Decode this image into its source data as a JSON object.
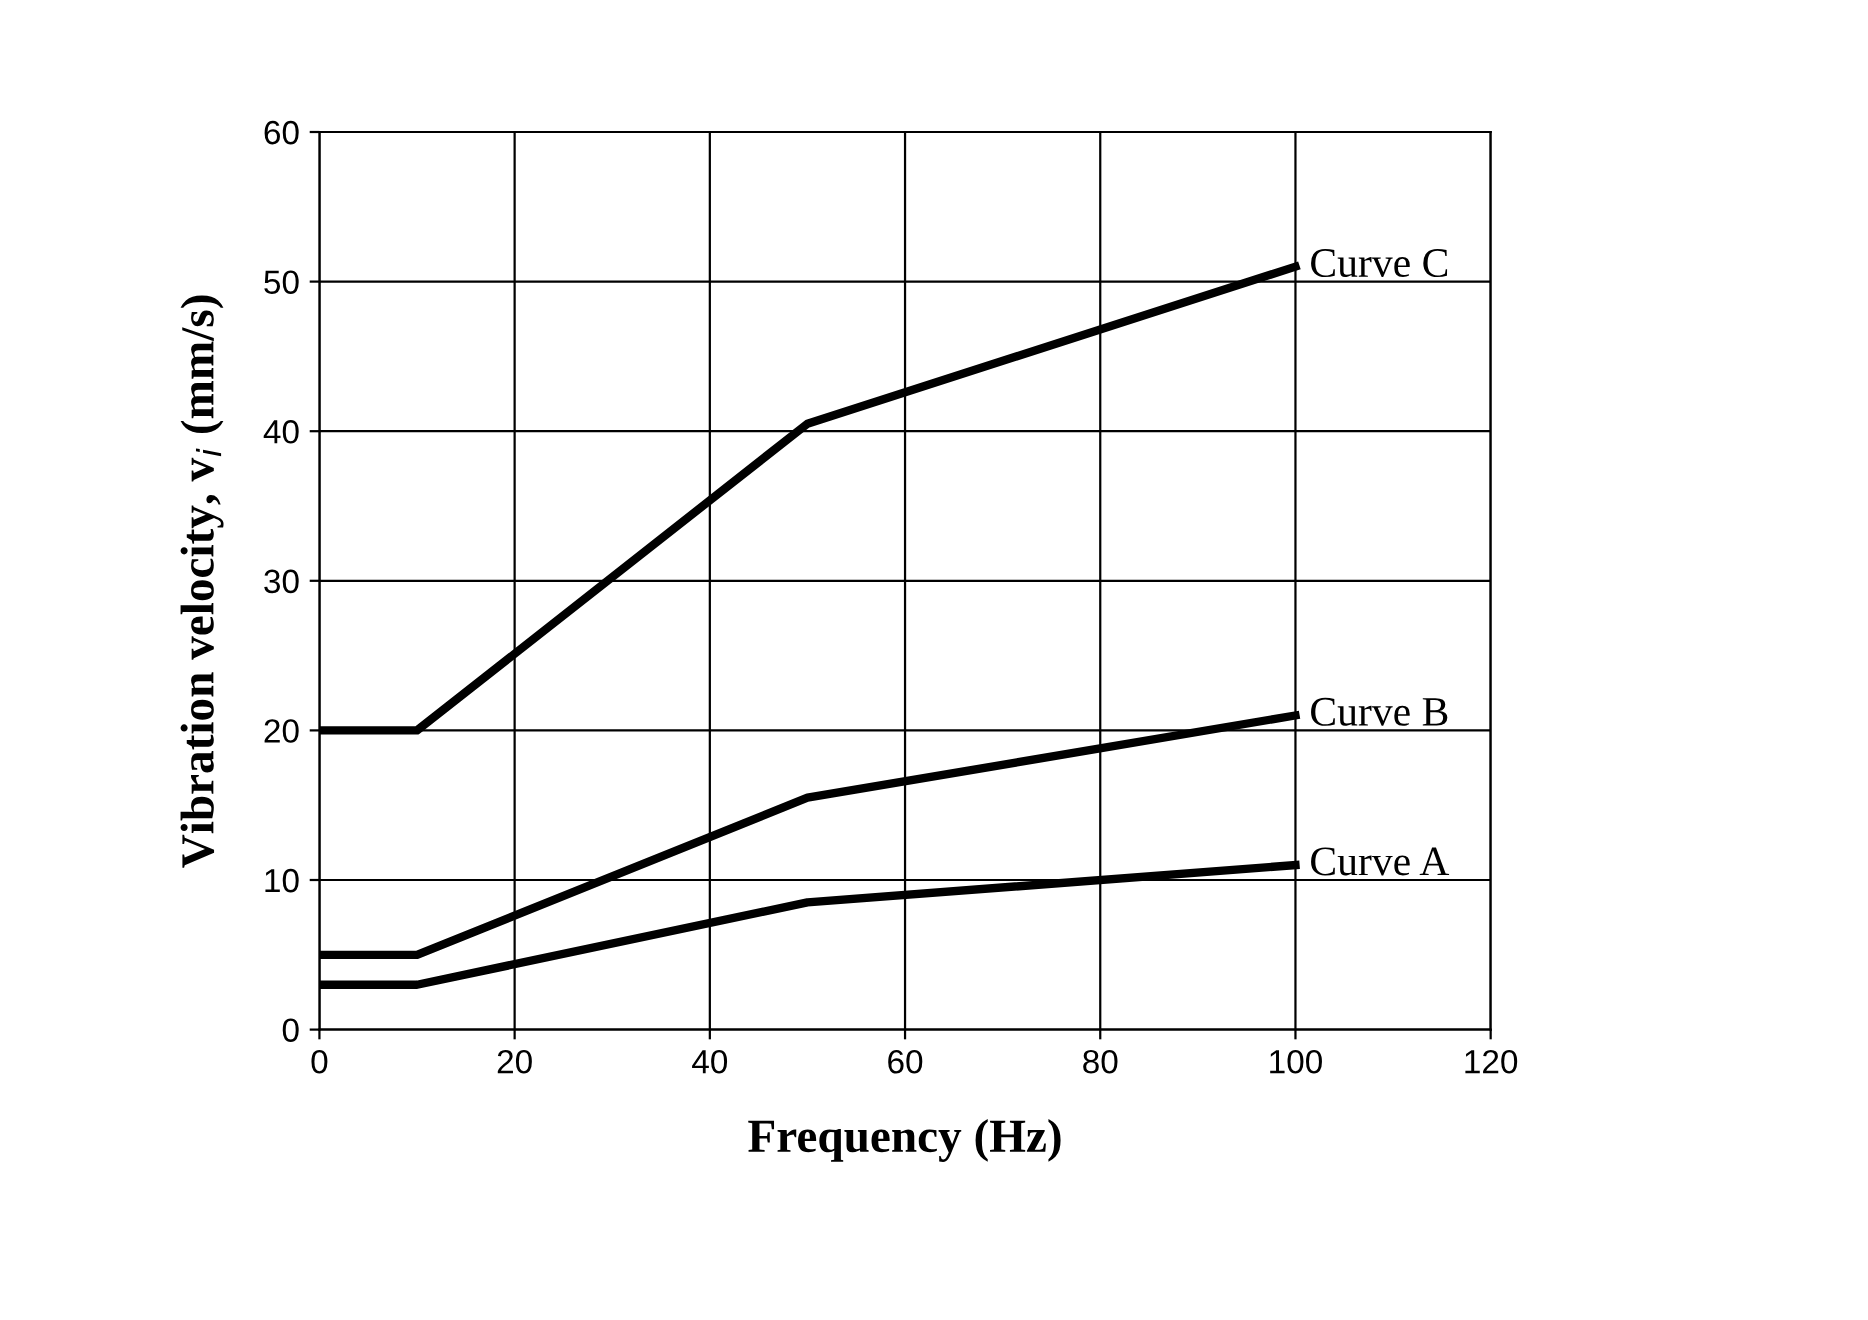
{
  "chart_data": {
    "type": "line",
    "x": [
      0,
      10,
      50,
      100
    ],
    "xlabel": "Frequency (Hz)",
    "ylabel": "Vibration velocity, v$_{i}$ (mm/s)",
    "series": [
      {
        "name": "Curve C",
        "color": "#000000",
        "values": [
          20,
          20,
          40.5,
          51
        ]
      },
      {
        "name": "Curve B",
        "color": "#000000",
        "values": [
          5,
          5,
          15.5,
          21
        ]
      },
      {
        "name": "Curve A",
        "color": "#000000",
        "values": [
          3,
          3,
          8.5,
          11
        ]
      }
    ],
    "xlim": [
      0,
      120
    ],
    "xticks": [
      0,
      20,
      40,
      60,
      80,
      100,
      120
    ],
    "ylim": [
      0,
      60
    ],
    "yticks": [
      0,
      10,
      20,
      30,
      40,
      50,
      60
    ],
    "grid": true,
    "marker": "none",
    "line_style": "solid",
    "legend": false
  }
}
